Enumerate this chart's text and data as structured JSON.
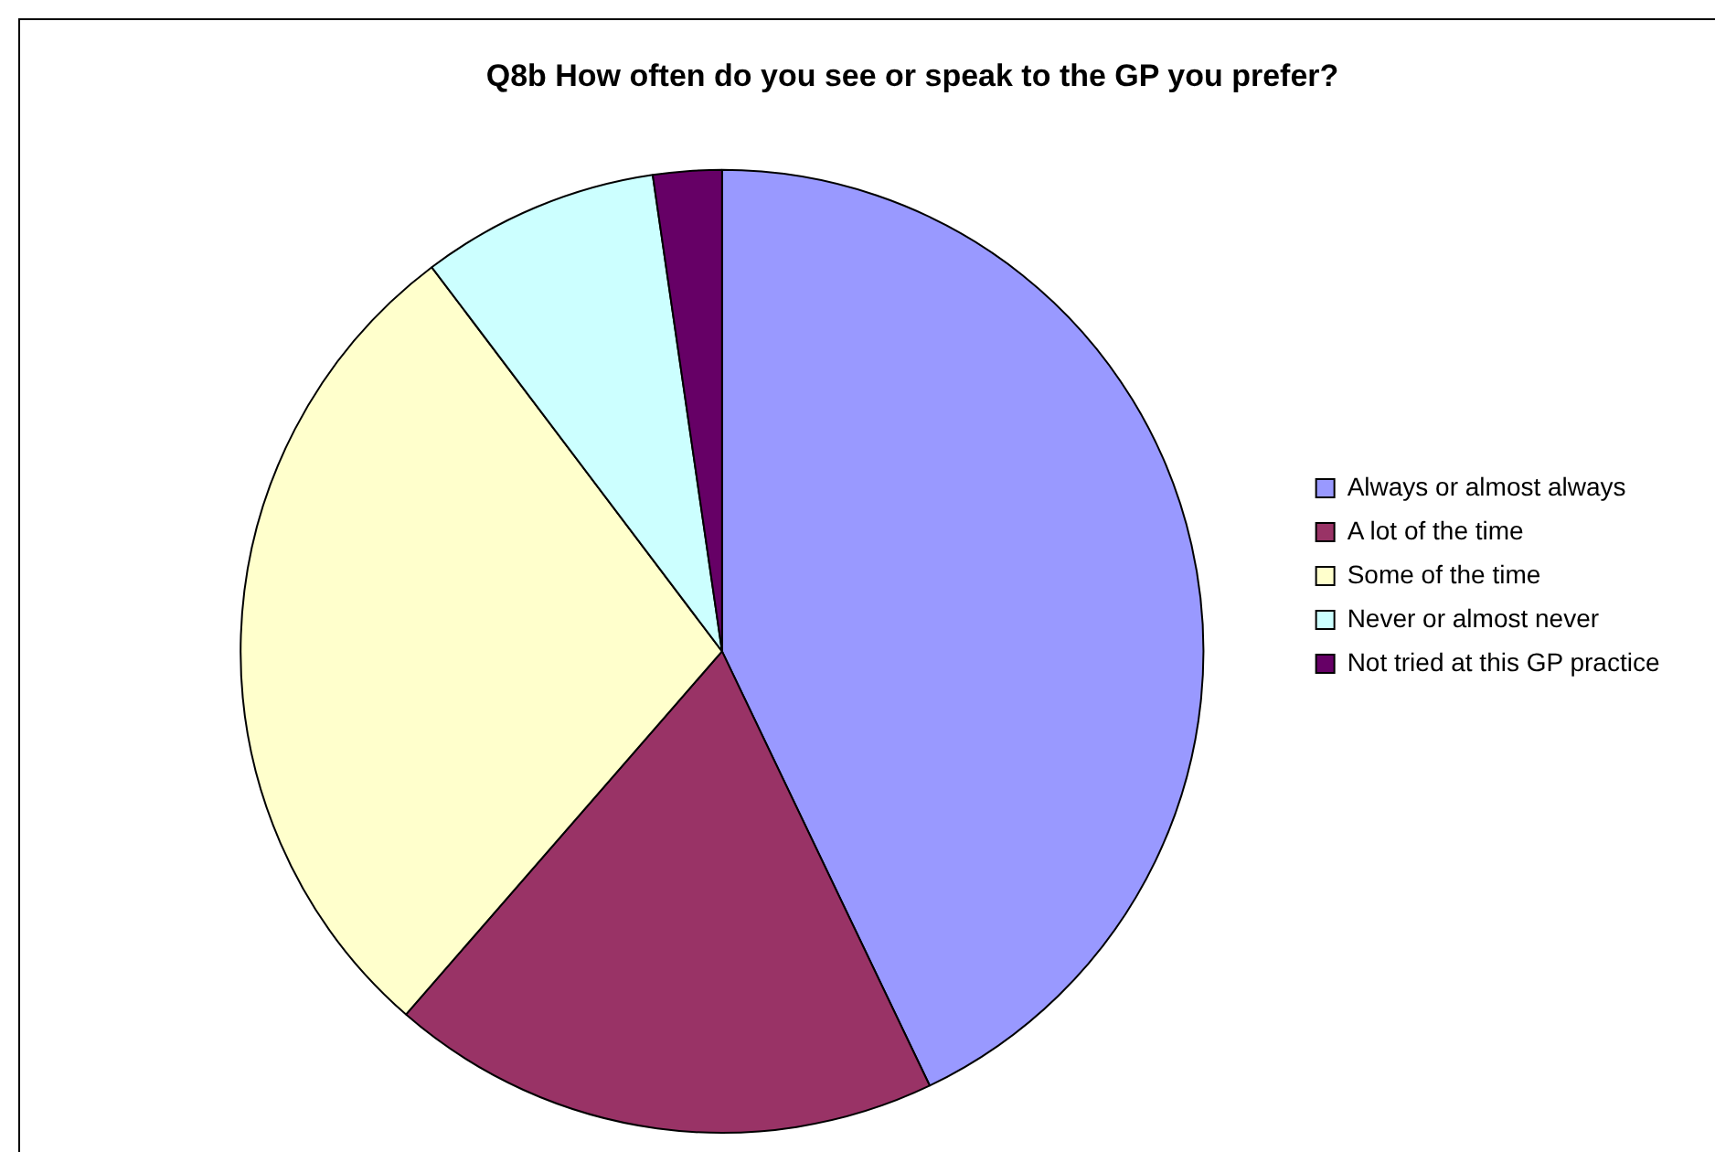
{
  "chart_data": {
    "type": "pie",
    "title": "Q8b How often do you see or speak to the GP you prefer?",
    "categories": [
      "Always or almost always",
      "A lot of the time",
      "Some of the time",
      "Never or almost never",
      "Not tried at this GP practice"
    ],
    "values": [
      42.9,
      18.5,
      28.3,
      8.0,
      2.3
    ],
    "colors": [
      "#9999ff",
      "#993366",
      "#ffffcc",
      "#ccffff",
      "#660066"
    ],
    "legend": "right"
  }
}
